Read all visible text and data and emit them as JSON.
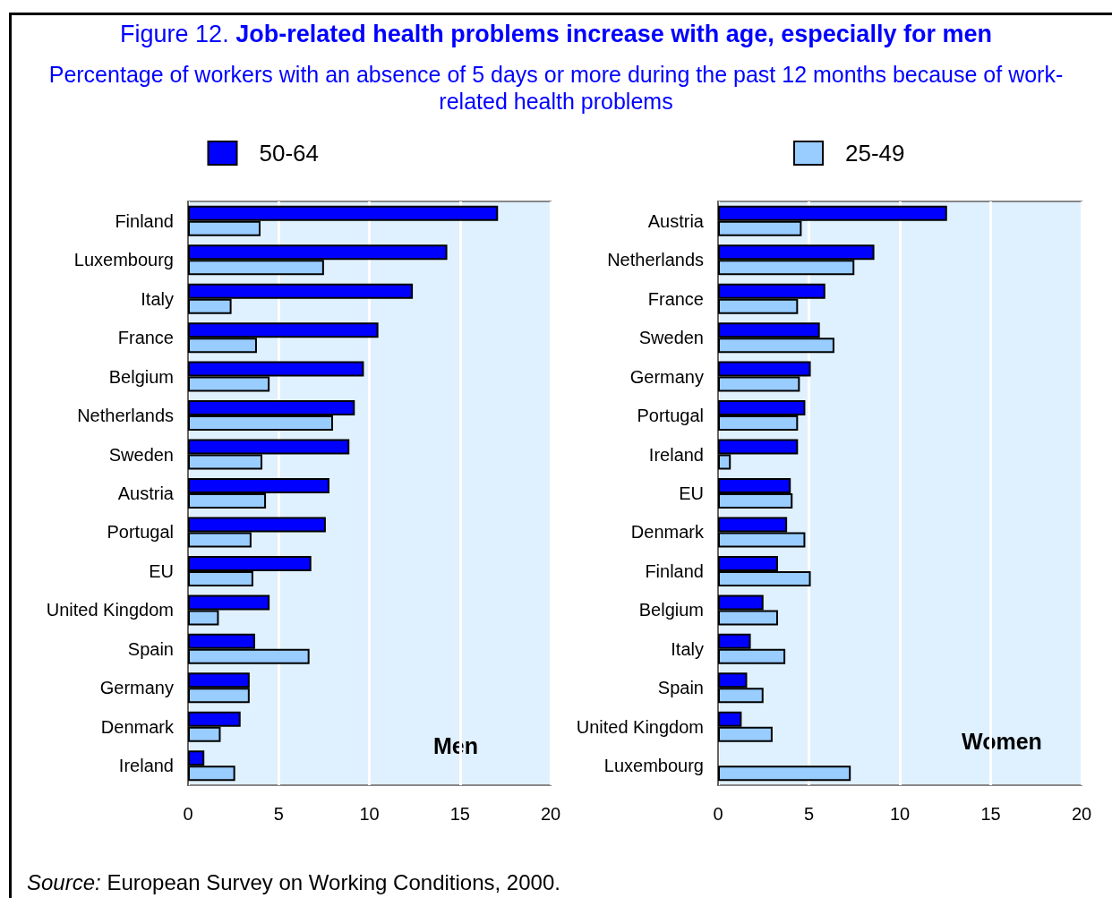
{
  "chart_data": [
    {
      "type": "bar",
      "orientation": "horizontal",
      "title": "Figure 12. Job-related health problems increase with age, especially for men",
      "subtitle": "Percentage of workers with an absence of 5 days or more during the past 12 months because of work-related health problems",
      "categories": [
        "Finland",
        "Luxembourg",
        "Italy",
        "France",
        "Belgium",
        "Netherlands",
        "Sweden",
        "Austria",
        "Portugal",
        "EU",
        "United Kingdom",
        "Spain",
        "Germany",
        "Denmark",
        "Ireland"
      ],
      "series": [
        {
          "name": "50-64",
          "color": "#0000ff",
          "values": [
            17.1,
            14.3,
            12.4,
            10.5,
            9.7,
            9.2,
            8.9,
            7.8,
            7.6,
            6.8,
            4.5,
            3.7,
            3.4,
            2.9,
            0.9
          ]
        },
        {
          "name": "25-49",
          "color": "#99ccff",
          "values": [
            4.0,
            7.5,
            2.4,
            3.8,
            4.5,
            8.0,
            4.1,
            4.3,
            3.5,
            3.6,
            1.7,
            6.7,
            3.4,
            1.8,
            2.6
          ]
        }
      ],
      "xlim": [
        0,
        20
      ],
      "xticks": [
        0,
        5,
        10,
        15,
        20
      ],
      "grid": "x",
      "legend": "top",
      "annotations": [
        "Men",
        "Source: European Survey on Working Conditions, 2000."
      ]
    },
    {
      "type": "bar",
      "orientation": "horizontal",
      "categories": [
        "Austria",
        "Netherlands",
        "France",
        "Sweden",
        "Germany",
        "Portugal",
        "Ireland",
        "EU",
        "Denmark",
        "Finland",
        "Belgium",
        "Italy",
        "Spain",
        "United Kingdom",
        "Luxembourg"
      ],
      "series": [
        {
          "color": "#0000ff",
          "values": [
            12.6,
            8.6,
            5.9,
            5.6,
            5.1,
            4.8,
            4.4,
            4.0,
            3.8,
            3.3,
            2.5,
            1.8,
            1.6,
            1.3,
            null
          ]
        },
        {
          "color": "#99ccff",
          "values": [
            4.6,
            7.5,
            4.4,
            6.4,
            4.5,
            4.4,
            0.7,
            4.1,
            4.8,
            5.1,
            3.3,
            3.7,
            2.5,
            3.0,
            7.3
          ]
        }
      ],
      "xlim": [
        0,
        20
      ],
      "xticks": [
        0,
        5,
        10,
        15,
        20
      ],
      "grid": "x",
      "annotations": [
        "Women"
      ]
    }
  ]
}
